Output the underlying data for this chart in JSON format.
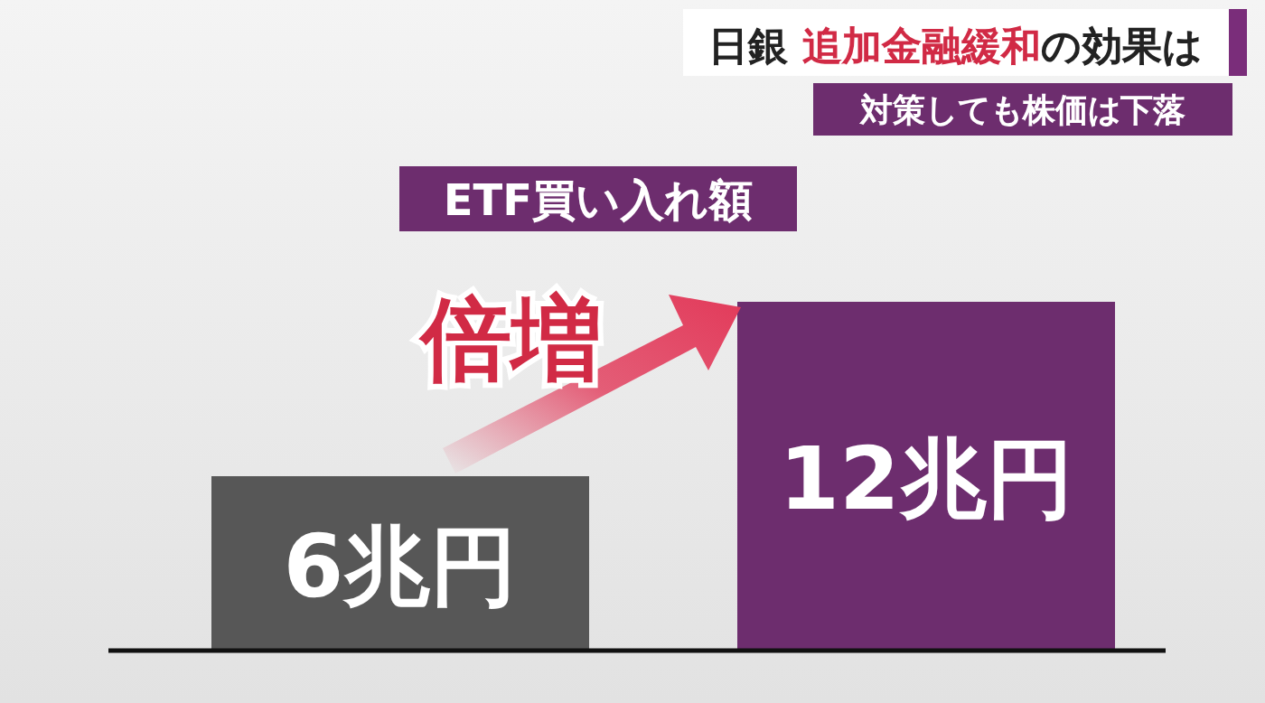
{
  "chart_data": {
    "type": "bar",
    "title": "日銀 追加金融緩和の効果は",
    "subtitle": "対策しても株価は下落",
    "categories": [
      null,
      null
    ],
    "values": [
      6,
      12
    ],
    "colors": [
      "#575757",
      "#6d2d6e"
    ],
    "value_labels": [
      "6兆円",
      "12兆円"
    ],
    "annotations": [
      "ETF買い入れ額",
      "倍増"
    ]
  }
}
